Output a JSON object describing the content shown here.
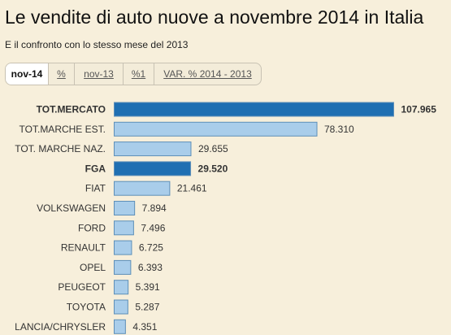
{
  "header": {
    "title": "Le vendite di auto nuove a novembre 2014 in Italia",
    "subtitle": "E il confronto con lo stesso mese del 2013"
  },
  "tabs": [
    {
      "label": "nov-14",
      "active": true
    },
    {
      "label": "%",
      "active": false
    },
    {
      "label": "nov-13",
      "active": false
    },
    {
      "label": "%1",
      "active": false
    },
    {
      "label": "VAR. % 2014 - 2013",
      "active": false
    }
  ],
  "colors": {
    "highlight_bar": "#1f6fb2",
    "normal_bar": "#a9cdea",
    "bar_border": "#5d8fb8"
  },
  "chart_data": {
    "type": "bar",
    "orientation": "horizontal",
    "categories": [
      "TOT.MERCATO",
      "TOT.MARCHE EST.",
      "TOT. MARCHE NAZ.",
      "FGA",
      "FIAT",
      "VOLKSWAGEN",
      "FORD",
      "RENAULT",
      "OPEL",
      "PEUGEOT",
      "TOYOTA",
      "LANCIA/CHRYSLER"
    ],
    "values": [
      107965,
      78310,
      29655,
      29520,
      21461,
      7894,
      7496,
      6725,
      6393,
      5391,
      5287,
      4351
    ],
    "value_labels": [
      "107.965",
      "78.310",
      "29.655",
      "29.520",
      "21.461",
      "7.894",
      "7.496",
      "6.725",
      "6.393",
      "5.391",
      "5.287",
      "4.351"
    ],
    "highlighted": [
      "TOT.MERCATO",
      "FGA"
    ],
    "xlim": [
      0,
      107965
    ],
    "grid": false,
    "legend": "none"
  }
}
